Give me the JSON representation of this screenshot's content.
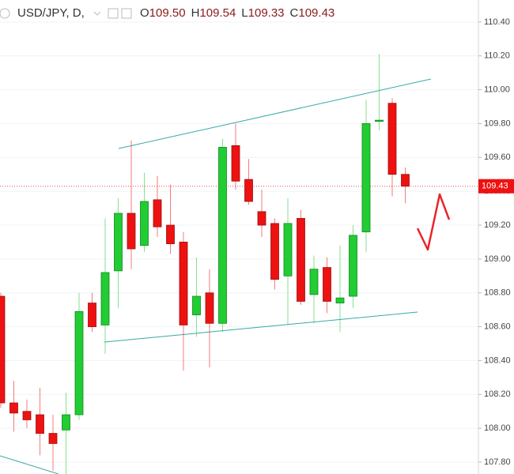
{
  "chart_data": {
    "type": "candlestick",
    "symbol": "USD/JPY, D,",
    "ohlc_legend": [
      {
        "key": "O",
        "value": "109.50"
      },
      {
        "key": "H",
        "value": "109.54"
      },
      {
        "key": "L",
        "value": "109.33"
      },
      {
        "key": "C",
        "value": "109.43"
      }
    ],
    "categories": [
      null,
      null,
      null,
      null,
      null,
      null,
      null,
      null,
      null,
      null,
      null,
      null,
      null,
      null,
      null,
      null,
      null,
      null,
      null,
      null,
      null,
      null,
      null,
      null,
      null,
      null,
      null,
      null,
      null,
      null,
      null,
      null
    ],
    "open": [
      108.78,
      108.15,
      108.1,
      108.08,
      107.97,
      107.99,
      108.08,
      108.74,
      108.61,
      108.93,
      109.27,
      109.08,
      109.35,
      109.2,
      109.1,
      108.67,
      108.8,
      108.62,
      109.67,
      109.47,
      109.28,
      109.21,
      108.9,
      109.24,
      108.79,
      108.95,
      108.74,
      108.78,
      109.16,
      109.82,
      109.92,
      109.5
    ],
    "high": [
      108.8,
      108.28,
      108.17,
      108.24,
      108.08,
      108.21,
      108.8,
      108.8,
      109.24,
      109.36,
      109.7,
      109.51,
      109.49,
      109.44,
      109.16,
      109.01,
      108.94,
      109.71,
      109.8,
      109.59,
      109.41,
      109.24,
      109.36,
      109.29,
      109.02,
      109.01,
      109.08,
      109.2,
      109.94,
      110.21,
      109.95,
      109.54
    ],
    "low": [
      108.12,
      107.98,
      108.0,
      107.84,
      107.75,
      107.73,
      108.05,
      108.57,
      108.44,
      108.71,
      108.94,
      109.04,
      109.13,
      109.03,
      108.34,
      108.54,
      108.36,
      108.57,
      109.41,
      109.32,
      109.13,
      108.82,
      108.61,
      108.73,
      108.62,
      108.68,
      108.57,
      108.71,
      109.04,
      109.76,
      109.37,
      109.33
    ],
    "close": [
      108.15,
      108.09,
      108.05,
      107.97,
      107.91,
      108.08,
      108.69,
      108.6,
      108.92,
      109.27,
      109.06,
      109.34,
      109.19,
      109.09,
      108.61,
      108.78,
      108.62,
      109.66,
      109.46,
      109.34,
      109.2,
      108.88,
      109.21,
      108.75,
      108.94,
      108.75,
      108.77,
      109.14,
      109.8,
      109.82,
      109.5,
      109.43
    ],
    "up_color": "#22cc33",
    "down_color": "#ee1111",
    "ylim": [
      107.73,
      110.53
    ],
    "yticks": [
      {
        "value": 107.8,
        "label": "107.80"
      },
      {
        "value": 108.0,
        "label": "108.00"
      },
      {
        "value": 108.2,
        "label": "108.20"
      },
      {
        "value": 108.4,
        "label": "108.40"
      },
      {
        "value": 108.6,
        "label": "108.60"
      },
      {
        "value": 108.8,
        "label": "108.80"
      },
      {
        "value": 109.0,
        "label": "109.00"
      },
      {
        "value": 109.2,
        "label": "109.20"
      },
      {
        "value": 109.4,
        "label": "109.40"
      },
      {
        "value": 109.6,
        "label": "109.60"
      },
      {
        "value": 109.8,
        "label": "109.80"
      },
      {
        "value": 110.0,
        "label": "110.00"
      },
      {
        "value": 110.2,
        "label": "110.20"
      },
      {
        "value": 110.4,
        "label": "110.40"
      }
    ],
    "grid": true,
    "last_price_line": true
  }
}
